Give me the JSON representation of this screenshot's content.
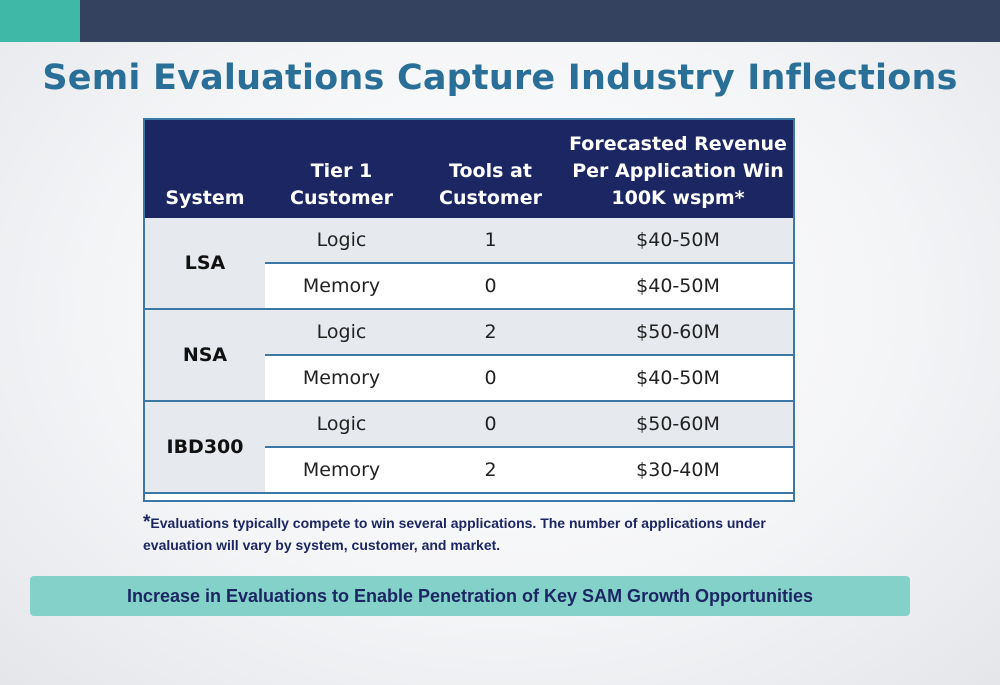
{
  "title": "Semi Evaluations Capture Industry Inflections",
  "table": {
    "headers": {
      "system": "System",
      "tier1": "Tier 1\nCustomer",
      "tools": "Tools at\nCustomer",
      "revenue": "Forecasted Revenue\nPer Application Win\n100K wspm*"
    },
    "groups": [
      {
        "system": "LSA",
        "rows": [
          {
            "customer": "Logic",
            "tools": "1",
            "revenue": "$40-50M"
          },
          {
            "customer": "Memory",
            "tools": "0",
            "revenue": "$40-50M"
          }
        ]
      },
      {
        "system": "NSA",
        "rows": [
          {
            "customer": "Logic",
            "tools": "2",
            "revenue": "$50-60M"
          },
          {
            "customer": "Memory",
            "tools": "0",
            "revenue": "$40-50M"
          }
        ]
      },
      {
        "system": "IBD300",
        "rows": [
          {
            "customer": "Logic",
            "tools": "0",
            "revenue": "$50-60M"
          },
          {
            "customer": "Memory",
            "tools": "2",
            "revenue": "$30-40M"
          }
        ]
      }
    ]
  },
  "footnote": {
    "star": "*",
    "text": "Evaluations typically compete to win several applications. The number of applications under evaluation will vary by system, customer, and market."
  },
  "banner": "Increase in Evaluations to Enable Penetration of Key SAM Growth Opportunities",
  "colors": {
    "header_bg": "#1b2663",
    "title": "#2a6f98",
    "banner_bg": "#84d1c9",
    "top_bar": "#35425f",
    "top_accent": "#3fb8a8"
  }
}
